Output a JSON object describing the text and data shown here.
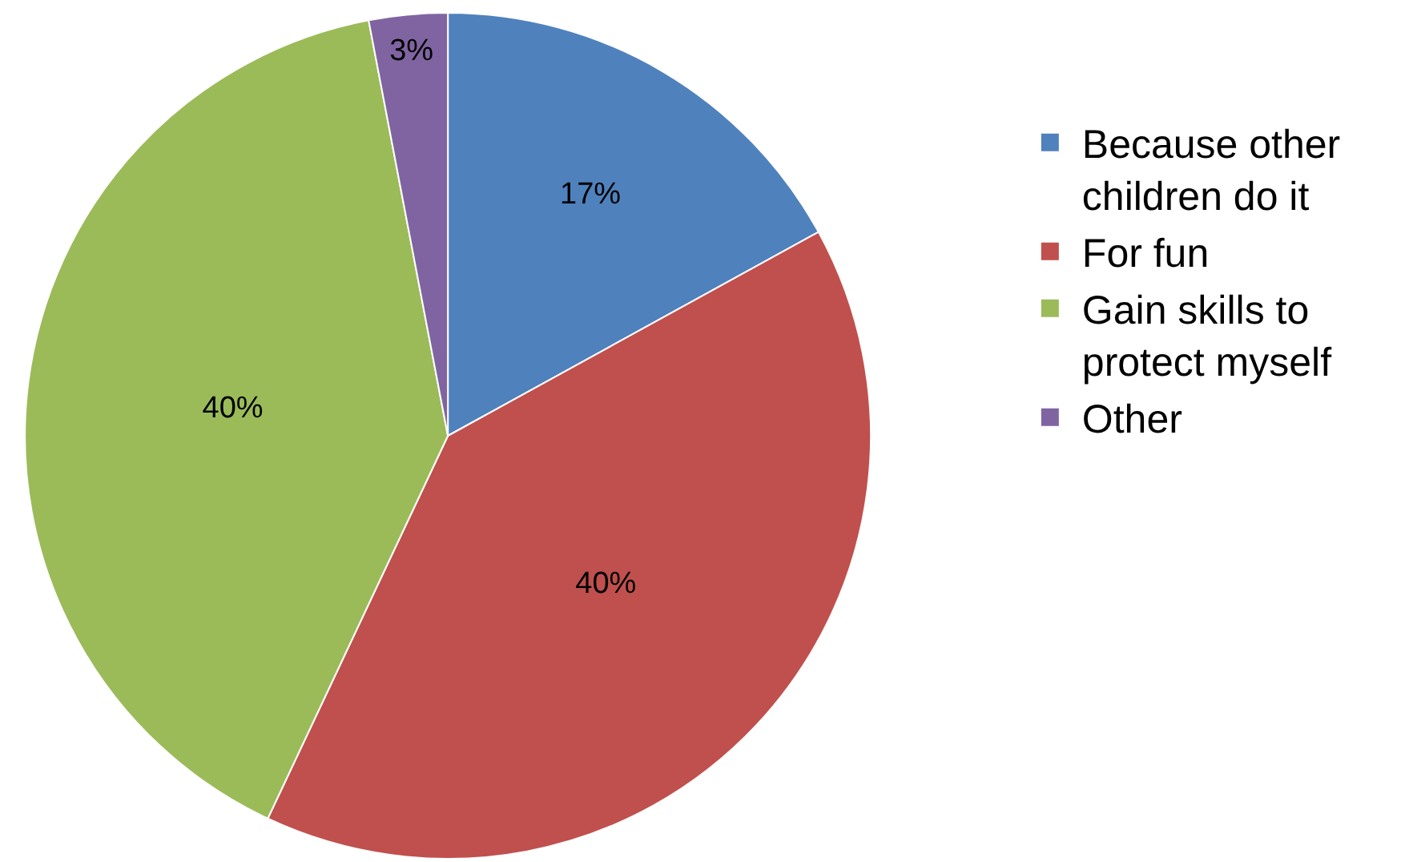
{
  "chart_data": {
    "type": "pie",
    "categories": [
      "Because other children do it",
      "For fun",
      "Gain skills to protect myself",
      "Other"
    ],
    "values": [
      17,
      40,
      40,
      3
    ],
    "colors": [
      "#4f81bd",
      "#c0504d",
      "#9bbb59",
      "#8064a2"
    ],
    "value_labels": [
      "17%",
      "40%",
      "40%",
      "3%"
    ],
    "legend": "right"
  }
}
